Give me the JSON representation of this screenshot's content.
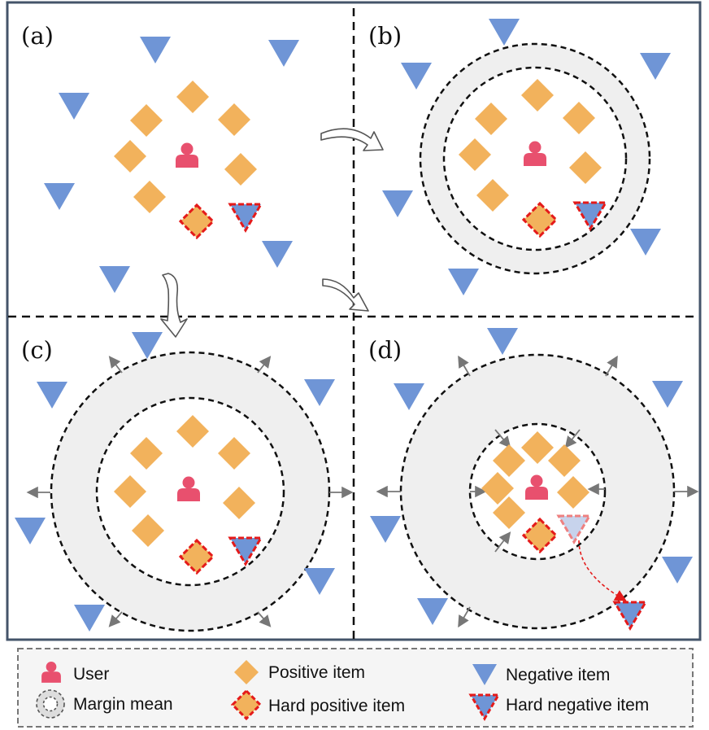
{
  "panels": [
    {
      "id": "a",
      "label": "(a)"
    },
    {
      "id": "b",
      "label": "(b)"
    },
    {
      "id": "c",
      "label": "(c)"
    },
    {
      "id": "d",
      "label": "(d)"
    }
  ],
  "legend": {
    "user": "User",
    "margin_mean": "Margin mean",
    "positive_item": "Positive item",
    "hard_positive_item": "Hard positive item",
    "negative_item": "Negative item",
    "hard_negative_item": "Hard negative item"
  },
  "colors": {
    "user": "#e8506e",
    "positive": "#f2b25c",
    "negative": "#6f95d6",
    "hard_outline": "#e41a1a",
    "margin_band": "#efefef",
    "frame": "#44546a",
    "push_arrow": "#777777"
  },
  "icons": {
    "user": "user-icon",
    "positive": "diamond-icon",
    "negative": "triangle-down-icon",
    "margin": "ring-icon",
    "flow": "curved-arrow-icon"
  }
}
